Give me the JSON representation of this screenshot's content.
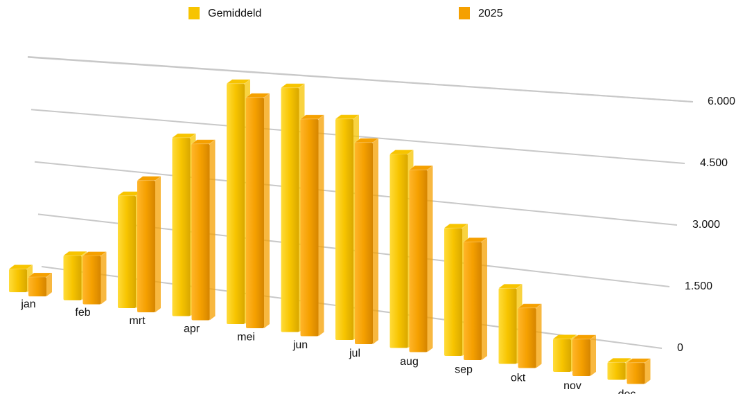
{
  "chart_data": {
    "type": "bar3d",
    "categories": [
      "jan",
      "feb",
      "mrt",
      "apr",
      "mei",
      "jun",
      "jul",
      "aug",
      "sep",
      "okt",
      "nov",
      "dec"
    ],
    "series": [
      {
        "name": "Gemiddeld",
        "color": "#f7c400",
        "values": [
          600,
          1150,
          2900,
          4600,
          6200,
          6300,
          5700,
          5000,
          3300,
          1950,
          850,
          450
        ]
      },
      {
        "name": "2025",
        "color": "#f5a000",
        "values": [
          500,
          1250,
          3400,
          4550,
          5950,
          5600,
          5200,
          4700,
          3050,
          1550,
          950,
          550
        ]
      }
    ],
    "ylim": [
      0,
      7500
    ],
    "yticks": [
      0,
      {
        "value": 1500,
        "label": "1.500"
      },
      {
        "value": 3000,
        "label": "3.000"
      },
      {
        "value": 4500,
        "label": "4.500"
      },
      {
        "value": 6000,
        "label": "6.000"
      }
    ],
    "grid": true,
    "legend": "top"
  }
}
